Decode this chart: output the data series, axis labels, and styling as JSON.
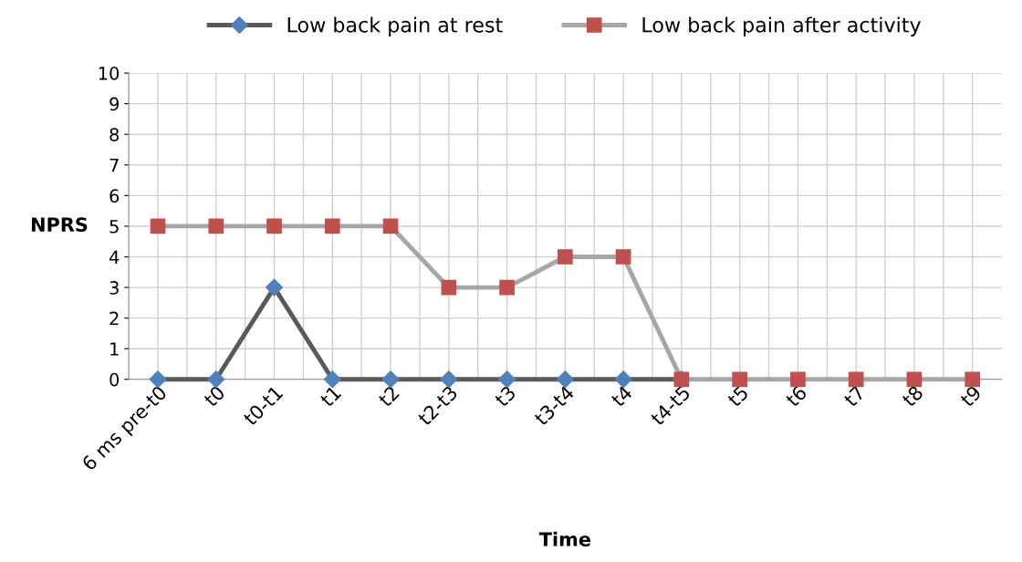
{
  "chart_data": {
    "type": "line",
    "xlabel": "Time",
    "ylabel": "NPRS",
    "categories": [
      "6 ms pre-t0",
      "t0",
      "t0-t1",
      "t1",
      "t2",
      "t2-t3",
      "t3",
      "t3-t4",
      "t4",
      "t4-t5",
      "t5",
      "t6",
      "t7",
      "t8",
      "t9"
    ],
    "series": [
      {
        "name": "Low back pain at rest",
        "color": "#4f81bd",
        "marker": "diamond",
        "values": [
          0,
          0,
          3,
          0,
          0,
          0,
          0,
          0,
          0,
          0,
          null,
          null,
          null,
          null,
          null
        ]
      },
      {
        "name": "Low back pain after activity",
        "color": "#c0504d",
        "marker": "square",
        "values": [
          5,
          5,
          5,
          5,
          5,
          3,
          3,
          4,
          4,
          0,
          0,
          0,
          0,
          0,
          0
        ]
      }
    ],
    "ylim": [
      0,
      10
    ],
    "yticks": [
      0,
      1,
      2,
      3,
      4,
      5,
      6,
      7,
      8,
      9,
      10
    ],
    "grid": true,
    "legend": "top",
    "line_style": "solid"
  }
}
